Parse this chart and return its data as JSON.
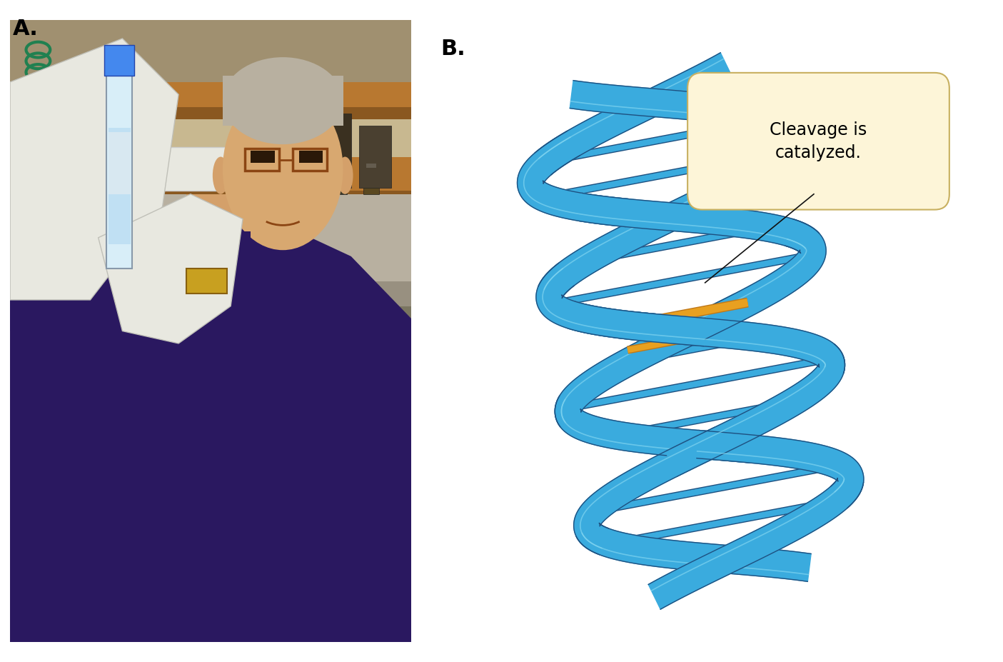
{
  "panel_a_label": "A.",
  "panel_b_label": "B.",
  "callout_text": "Cleavage is\ncatalyzed.",
  "callout_bg": "#fdf5d8",
  "callout_border": "#c8b060",
  "rna_blue_main": "#3aabde",
  "rna_blue_dark": "#1a6aaa",
  "rna_blue_edge": "#1e5080",
  "rna_blue_light": "#7fd4f0",
  "orange_main": "#e8a020",
  "orange_dark": "#c07818",
  "background_color": "#ffffff",
  "label_fontsize": 22,
  "callout_fontsize": 17,
  "fig_width": 14.05,
  "fig_height": 9.27,
  "line_color": "#111111",
  "photo_top_bg": "#c8b890",
  "photo_shelf": "#b87830",
  "photo_wall": "#c8b070",
  "photo_floor": "#7a7060",
  "photo_shirt": "#2a1860",
  "photo_skin": "#d4a06a",
  "photo_glove": "#e8e8e0",
  "photo_hair": "#c0b8a8"
}
